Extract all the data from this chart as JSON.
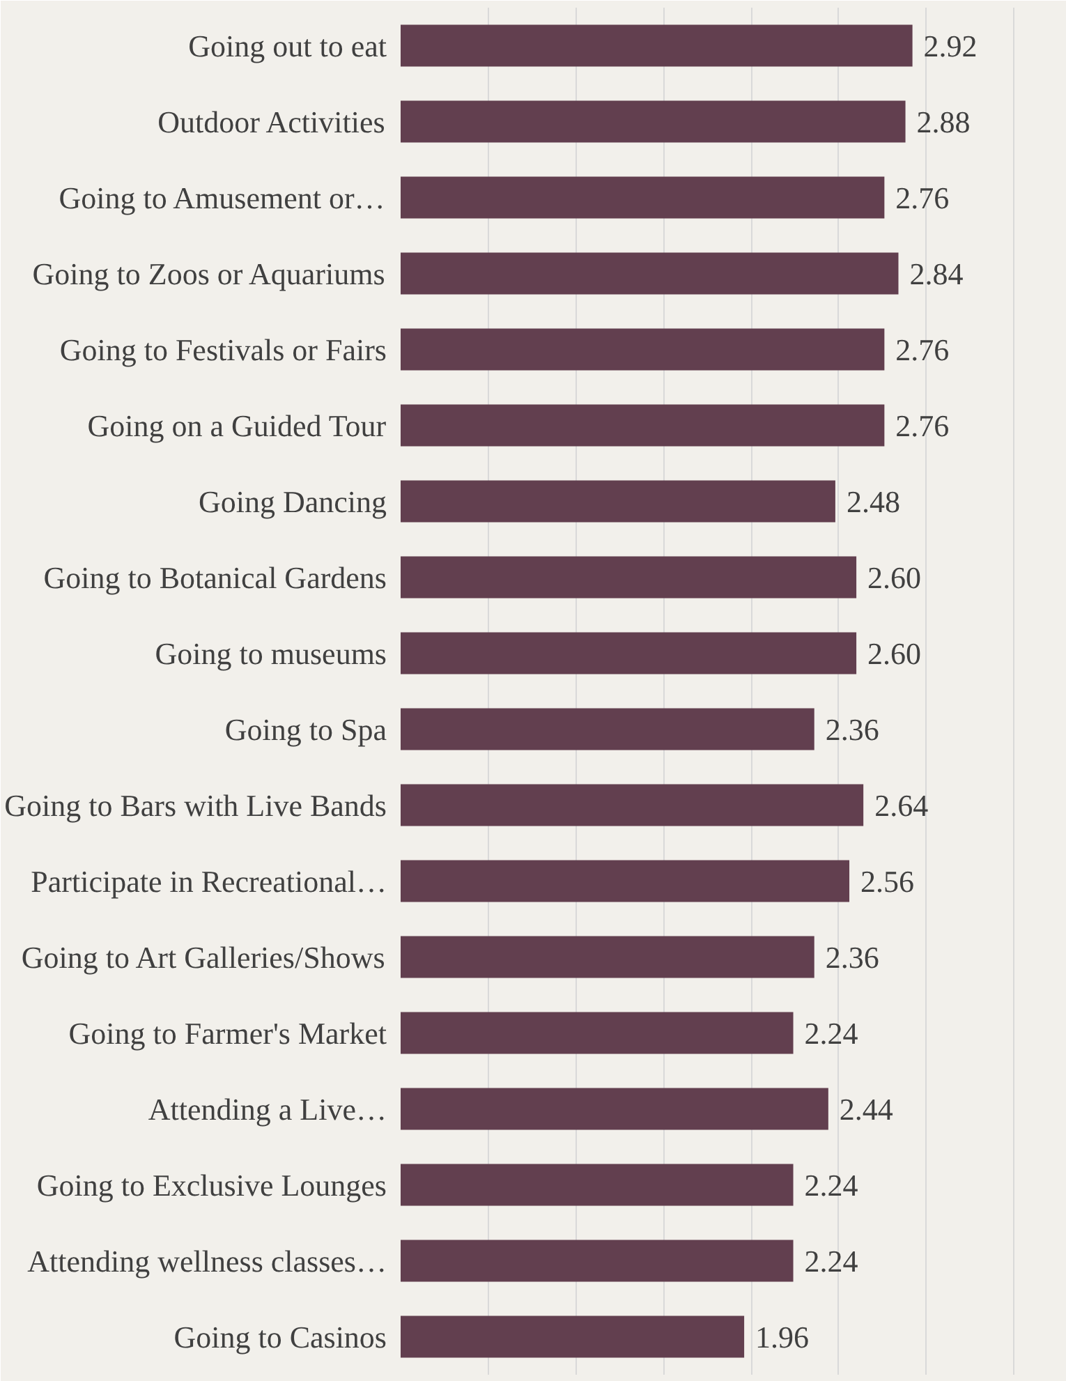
{
  "chart_data": {
    "type": "bar",
    "orientation": "horizontal",
    "categories": [
      "Going out to eat",
      "Outdoor Activities",
      "Going to Amusement or…",
      "Going to Zoos or Aquariums",
      "Going to Festivals or Fairs",
      "Going on a Guided Tour",
      "Going Dancing",
      "Going to Botanical Gardens",
      "Going to museums",
      "Going to Spa",
      "Going to Bars with Live Bands",
      "Participate in Recreational…",
      "Going to Art Galleries/Shows",
      "Going to Farmer's Market",
      "Attending a Live…",
      "Going to Exclusive Lounges",
      "Attending wellness classes…",
      "Going to Casinos"
    ],
    "values": [
      2.92,
      2.88,
      2.76,
      2.84,
      2.76,
      2.76,
      2.48,
      2.6,
      2.6,
      2.36,
      2.64,
      2.56,
      2.36,
      2.24,
      2.44,
      2.24,
      2.24,
      1.96
    ],
    "value_labels": [
      "2.92",
      "2.88",
      "2.76",
      "2.84",
      "2.76",
      "2.76",
      "2.48",
      "2.60",
      "2.60",
      "2.36",
      "2.64",
      "2.56",
      "2.36",
      "2.24",
      "2.44",
      "2.24",
      "2.24",
      "1.96"
    ],
    "color": "#623f4f",
    "xlim": [
      0,
      3.8
    ],
    "xticks": [
      {
        "value": 0,
        "label": null
      },
      {
        "value": 0.5,
        "label": null
      },
      {
        "value": 1,
        "label": null
      },
      {
        "value": 1.5,
        "label": null
      },
      {
        "value": 2,
        "label": null
      },
      {
        "value": 2.5,
        "label": null
      },
      {
        "value": 3,
        "label": null
      },
      {
        "value": 3.5,
        "label": null
      }
    ],
    "grid": "x",
    "tick_labels": "y"
  }
}
